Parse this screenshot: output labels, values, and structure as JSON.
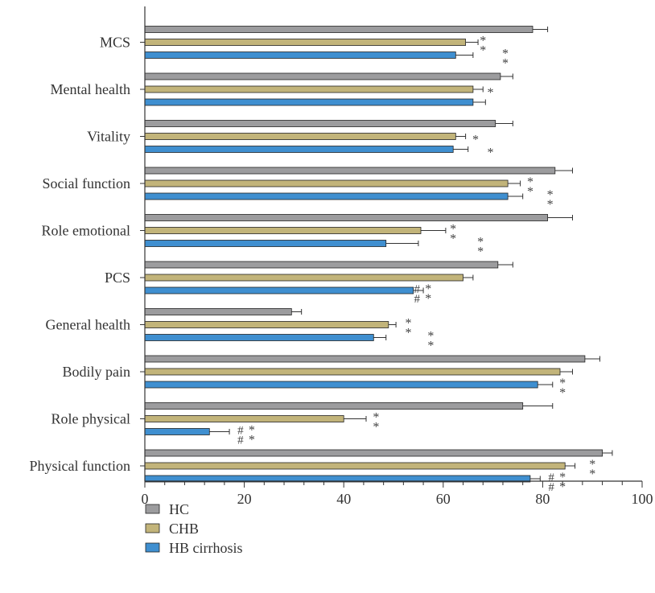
{
  "chart_data": {
    "type": "bar",
    "orientation": "horizontal",
    "categories": [
      "MCS",
      "Mental health",
      "Vitality",
      "Social function",
      "Role emotional",
      "PCS",
      "General health",
      "Bodily pain",
      "Role physical",
      "Physical function"
    ],
    "series": [
      {
        "name": "HC",
        "color": "#9c9c9e",
        "values": [
          78,
          71.5,
          70.5,
          82.5,
          81,
          71,
          29.5,
          88.5,
          76,
          92
        ],
        "errors": [
          3,
          2.5,
          3.5,
          3.5,
          5,
          3,
          2,
          3,
          6,
          2
        ]
      },
      {
        "name": "CHB",
        "color": "#c2b47a",
        "values": [
          64.5,
          66,
          62.5,
          73,
          55.5,
          64,
          49,
          83.5,
          40,
          84.5
        ],
        "errors": [
          2.5,
          2,
          2,
          2.5,
          5,
          2,
          1.5,
          2.5,
          4.5,
          2
        ]
      },
      {
        "name": "HB cirrhosis",
        "color": "#3f8fd0",
        "values": [
          62.5,
          66,
          62,
          73,
          48.5,
          54,
          46,
          79,
          13,
          77.5
        ],
        "errors": [
          3.5,
          2.5,
          3,
          3,
          6.5,
          2,
          2.5,
          3,
          4,
          2
        ]
      }
    ],
    "annotations": [
      {
        "category": "MCS",
        "series": "CHB",
        "text": "**",
        "x": 68
      },
      {
        "category": "MCS",
        "series": "HB cirrhosis",
        "text": "**",
        "x": 72.5
      },
      {
        "category": "Mental health",
        "series": "CHB",
        "text": "*",
        "x": 69.5
      },
      {
        "category": "Vitality",
        "series": "CHB",
        "text": "*",
        "x": 66.5
      },
      {
        "category": "Vitality",
        "series": "HB cirrhosis",
        "text": "*",
        "x": 69.5
      },
      {
        "category": "Social function",
        "series": "CHB",
        "text": "**",
        "x": 77.5
      },
      {
        "category": "Social function",
        "series": "HB cirrhosis",
        "text": "**",
        "x": 81.5
      },
      {
        "category": "Role emotional",
        "series": "CHB",
        "text": "**",
        "x": 62
      },
      {
        "category": "Role emotional",
        "series": "HB cirrhosis",
        "text": "**",
        "x": 67.5
      },
      {
        "category": "PCS",
        "series": "HB cirrhosis",
        "text": "##**",
        "x": 57
      },
      {
        "category": "General health",
        "series": "CHB",
        "text": "**",
        "x": 53
      },
      {
        "category": "General health",
        "series": "HB cirrhosis",
        "text": "**",
        "x": 57.5
      },
      {
        "category": "Bodily pain",
        "series": "HB cirrhosis",
        "text": "**",
        "x": 84
      },
      {
        "category": "Role physical",
        "series": "CHB",
        "text": "**",
        "x": 46.5
      },
      {
        "category": "Role physical",
        "series": "HB cirrhosis",
        "text": "##**",
        "x": 21.5
      },
      {
        "category": "Physical function",
        "series": "CHB",
        "text": "**",
        "x": 90
      },
      {
        "category": "Physical function",
        "series": "HB cirrhosis",
        "text": "##**",
        "x": 84
      }
    ],
    "xlim": [
      0,
      100
    ],
    "xticks": [
      0,
      20,
      40,
      60,
      80,
      100
    ],
    "xlabel": "",
    "ylabel": "",
    "title": "",
    "grid": false,
    "legend_position": "bottom-left"
  }
}
